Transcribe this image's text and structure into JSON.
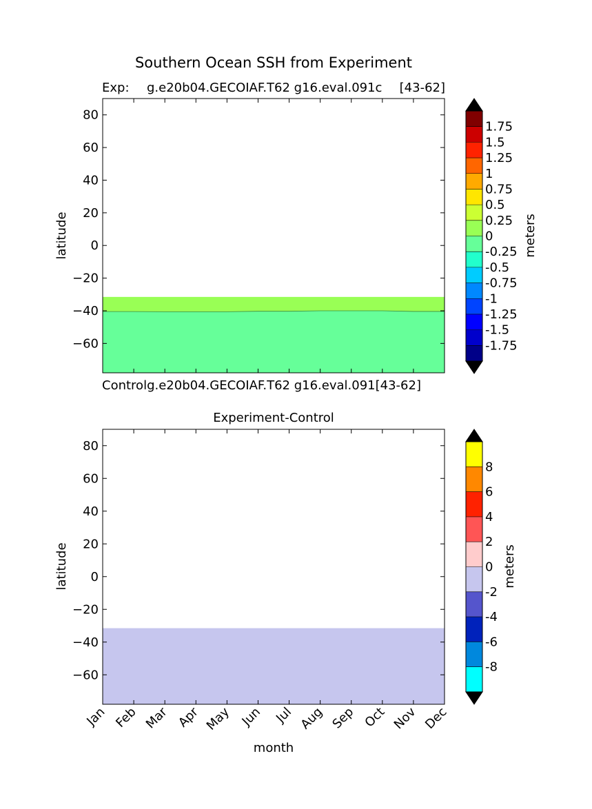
{
  "figure": {
    "title": "Southern Ocean SSH from Experiment"
  },
  "chart_data": [
    {
      "type": "heatmap",
      "panel": "experiment",
      "left_label": "Exp:",
      "center_label": "g.e20b04.GECOIAF.T62 g16.eval.091c",
      "right_label": "[43-62]",
      "bottom_label": "Controlg.e20b04.GECOIAF.T62 g16.eval.091[43-62]",
      "ylabel": "latitude",
      "ylim": [
        -78,
        90
      ],
      "yticks": [
        80,
        60,
        40,
        20,
        0,
        -20,
        -40,
        -60
      ],
      "ytick_labels": [
        "80",
        "60",
        "40",
        "20",
        "0",
        "−20",
        "−40",
        "−60"
      ],
      "x": [
        1,
        2,
        3,
        4,
        5,
        6,
        7,
        8,
        9,
        10,
        11,
        12
      ],
      "xlim": [
        1,
        12
      ],
      "filled_regions": [
        {
          "color": "#99ff55",
          "lat_bottom": [
            -40.5,
            -40.5,
            -40.6,
            -40.6,
            -40.6,
            -40.3,
            -40.3,
            -40.0,
            -40.0,
            -40.0,
            -40.4,
            -40.4
          ],
          "lat_top": -31.5
        },
        {
          "color": "#66ff99",
          "lat_bottom": -78,
          "lat_top_boundary": true
        }
      ],
      "colorbar": {
        "label": "meters",
        "levels": [
          "1.75",
          "1.5",
          "1.25",
          "1",
          "0.75",
          "0.5",
          "0.25",
          "0",
          "-0.25",
          "-0.5",
          "-0.75",
          "-1",
          "-1.25",
          "-1.5",
          "-1.75"
        ],
        "colors": [
          "#800000",
          "#cc0000",
          "#ff2200",
          "#ff6600",
          "#ffaa00",
          "#ffe600",
          "#ccff33",
          "#99ff55",
          "#66ff99",
          "#22ffcc",
          "#00ccff",
          "#0088ff",
          "#0044ff",
          "#0000ff",
          "#0000cc",
          "#000088"
        ],
        "extend_color": "#000000"
      }
    },
    {
      "type": "heatmap",
      "panel": "difference",
      "title": "Experiment-Control",
      "xlabel": "month",
      "ylabel": "latitude",
      "ylim": [
        -78,
        90
      ],
      "yticks": [
        80,
        60,
        40,
        20,
        0,
        -20,
        -40,
        -60
      ],
      "ytick_labels": [
        "80",
        "60",
        "40",
        "20",
        "0",
        "−20",
        "−40",
        "−60"
      ],
      "categories": [
        "Jan",
        "Feb",
        "Mar",
        "Apr",
        "May",
        "Jun",
        "Jul",
        "Aug",
        "Sep",
        "Oct",
        "Nov",
        "Dec"
      ],
      "xlim": [
        1,
        12
      ],
      "filled_regions": [
        {
          "color": "#c6c6ee",
          "lat_bottom": -78,
          "lat_top": -31.5
        }
      ],
      "colorbar": {
        "label": "meters",
        "levels": [
          "8",
          "6",
          "4",
          "2",
          "0",
          "-2",
          "-4",
          "-6",
          "-8"
        ],
        "colors": [
          "#ffff00",
          "#ff8800",
          "#ff2200",
          "#ff5555",
          "#ffcccc",
          "#c6c6ee",
          "#5555cc",
          "#0022bb",
          "#0088dd",
          "#00ffff"
        ],
        "extend_color": "#000000"
      }
    }
  ]
}
